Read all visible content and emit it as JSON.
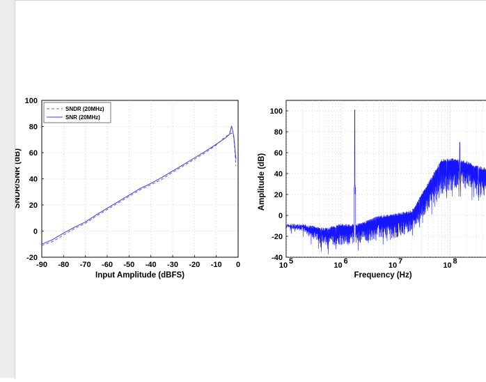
{
  "chart_data": [
    {
      "type": "line",
      "title": "",
      "xlabel": "Input Amplitude (dBFS)",
      "ylabel": "SNDR/SNR (dB)",
      "xlim": [
        -90,
        0
      ],
      "ylim": [
        -20,
        100
      ],
      "xticks": [
        "-90",
        "-80",
        "-70",
        "-60",
        "-50",
        "-40",
        "-30",
        "-20",
        "-10",
        "0"
      ],
      "yticks": [
        "-20",
        "0",
        "20",
        "40",
        "60",
        "80",
        "100"
      ],
      "grid": true,
      "legend_position": "top-left",
      "series": [
        {
          "name": "SNDR (20MHz)",
          "style": "dashed",
          "color": "#5b5bd6",
          "x": [
            -90,
            -85,
            -80,
            -75,
            -70,
            -65,
            -60,
            -55,
            -50,
            -45,
            -40,
            -35,
            -30,
            -25,
            -20,
            -15,
            -10,
            -6,
            -4,
            -3,
            -2,
            -1
          ],
          "y": [
            -11,
            -8,
            -3,
            2,
            6,
            11.5,
            16.5,
            21.5,
            26.5,
            31.5,
            35.5,
            39.5,
            45,
            50,
            55,
            60,
            66,
            72,
            74,
            75,
            72,
            50
          ]
        },
        {
          "name": "SNR (20MHz)",
          "style": "solid",
          "color": "#3b3bf0",
          "x": [
            -90,
            -85,
            -80,
            -75,
            -70,
            -65,
            -60,
            -55,
            -50,
            -45,
            -40,
            -35,
            -30,
            -25,
            -20,
            -15,
            -10,
            -6,
            -4,
            -3,
            -2,
            -1
          ],
          "y": [
            -10,
            -6.5,
            -1.5,
            3,
            7,
            12.5,
            17.5,
            22.5,
            27.5,
            32.5,
            36.5,
            41,
            46,
            51,
            56,
            61,
            66.5,
            71,
            74,
            80.5,
            73,
            55
          ]
        }
      ]
    },
    {
      "type": "line",
      "title": "",
      "xlabel": "Frequency (Hz)",
      "ylabel": "Amplitude (dB)",
      "xscale": "log",
      "xlim": [
        100000,
        500000000
      ],
      "ylim": [
        -40,
        110
      ],
      "xticks": [
        {
          "base": "10",
          "exp": "5"
        },
        {
          "base": "10",
          "exp": "6"
        },
        {
          "base": "10",
          "exp": "7"
        },
        {
          "base": "10",
          "exp": "8"
        }
      ],
      "yticks": [
        "-40",
        "-20",
        "0",
        "20",
        "40",
        "60",
        "80",
        "100"
      ],
      "grid": true,
      "series": [
        {
          "color": "#1515ff",
          "spur_frequency_hz": 1800000,
          "spur_peak_db": 101,
          "secondary_spur_frequency_hz": 150000000,
          "secondary_spur_db": 70,
          "envelope": {
            "freq_hz": [
              100000,
              200000,
              500000,
              1000000,
              2000000,
              5000000,
              10000000,
              20000000,
              40000000,
              70000000,
              120000000,
              200000000,
              300000000,
              500000000
            ],
            "upper_db": [
              -8,
              -8,
              -12,
              -8,
              -8,
              0,
              2,
              5,
              32,
              54,
              55,
              52,
              48,
              45
            ],
            "lower_db": [
              -12,
              -15,
              -30,
              -28,
              -27,
              -22,
              -22,
              -15,
              5,
              20,
              25,
              25,
              20,
              15
            ]
          }
        }
      ]
    }
  ]
}
